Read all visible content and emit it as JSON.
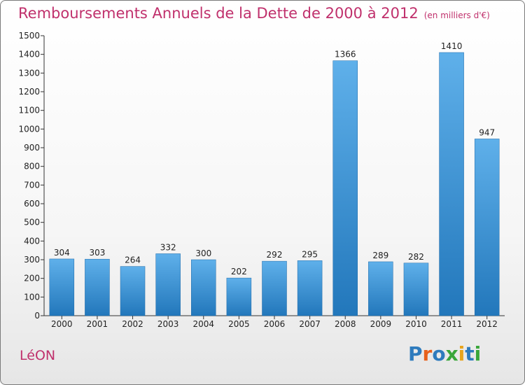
{
  "title": "Remboursements Annuels de la Dette de 2000 à 2012",
  "unit": "(en milliers d'€)",
  "commune": "LéON",
  "logo": {
    "text": "Proxiti",
    "letter_colors": [
      "#2e7bbd",
      "#e8611c",
      "#2e7bbd",
      "#3aa63a",
      "#e8a41c",
      "#2e7bbd",
      "#3aa63a"
    ]
  },
  "colors": {
    "title": "#c0306c",
    "bar_light": "#5fb0ea",
    "bar_dark": "#2277bb"
  },
  "chart_data": {
    "type": "bar",
    "categories": [
      "2000",
      "2001",
      "2002",
      "2003",
      "2004",
      "2005",
      "2006",
      "2007",
      "2008",
      "2009",
      "2010",
      "2011",
      "2012"
    ],
    "values": [
      304,
      303,
      264,
      332,
      300,
      202,
      292,
      295,
      1366,
      289,
      282,
      1410,
      947
    ],
    "ylim": [
      0,
      1500
    ],
    "yticks": [
      0,
      100,
      200,
      300,
      400,
      500,
      600,
      700,
      800,
      900,
      1000,
      1100,
      1200,
      1300,
      1400,
      1500
    ],
    "grid": false,
    "data_labels": true
  }
}
